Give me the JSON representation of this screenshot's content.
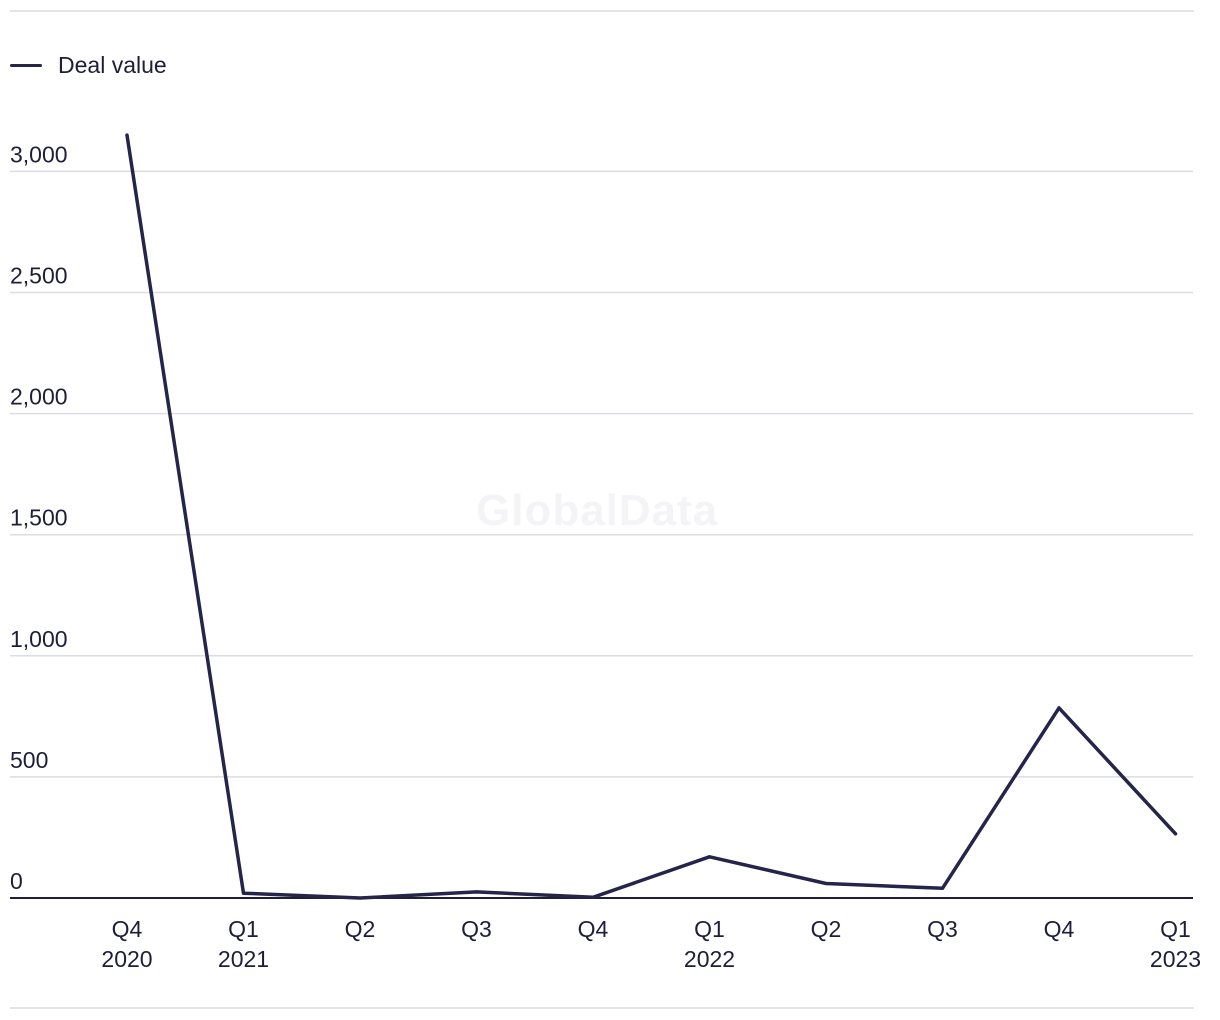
{
  "legend": {
    "label": "Deal value",
    "color": "#25244a"
  },
  "watermark": "GlobalData",
  "chart_data": {
    "type": "line",
    "categories": [
      [
        "Q4",
        "2020"
      ],
      [
        "Q1",
        "2021"
      ],
      [
        "Q2"
      ],
      [
        "Q3"
      ],
      [
        "Q4"
      ],
      [
        "Q1",
        "2022"
      ],
      [
        "Q2"
      ],
      [
        "Q3"
      ],
      [
        "Q4"
      ],
      [
        "Q1",
        "2023"
      ]
    ],
    "series": [
      {
        "name": "Deal value",
        "values": [
          3150,
          20,
          0,
          25,
          3,
          170,
          60,
          40,
          785,
          265
        ]
      }
    ],
    "yticks": [
      0,
      500,
      1000,
      1500,
      2000,
      2500,
      3000
    ],
    "ytick_labels": [
      "0",
      "500",
      "1,000",
      "1,500",
      "2,000",
      "2,500",
      "3,000"
    ],
    "ylim": [
      0,
      3150
    ],
    "grid": true,
    "legend_position": "top-left",
    "title": "",
    "xlabel": "",
    "ylabel": ""
  }
}
